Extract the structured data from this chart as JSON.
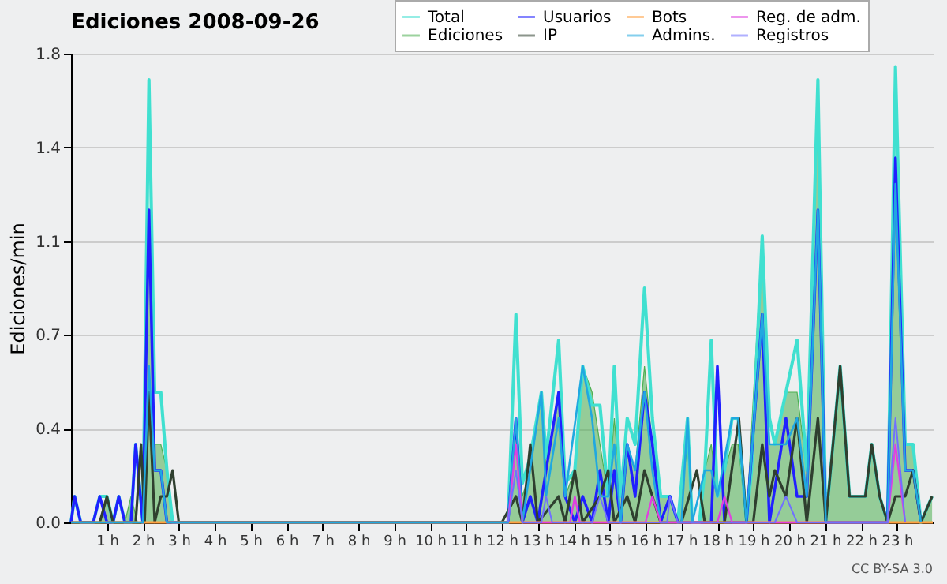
{
  "chart_data": {
    "type": "line",
    "title": "Ediciones  2008-09-26",
    "ylabel": "Ediciones/min",
    "annotations": [
      "CC BY-SA 3.0"
    ],
    "xlim": [
      0,
      24
    ],
    "xticks": [
      {
        "value": 1,
        "label": "1 h"
      },
      {
        "value": 2,
        "label": "2 h"
      },
      {
        "value": 3,
        "label": "3 h"
      },
      {
        "value": 4,
        "label": "4 h"
      },
      {
        "value": 5,
        "label": "5 h"
      },
      {
        "value": 6,
        "label": "6 h"
      },
      {
        "value": 7,
        "label": "7 h"
      },
      {
        "value": 8,
        "label": "8 h"
      },
      {
        "value": 9,
        "label": "9 h"
      },
      {
        "value": 10,
        "label": "10 h"
      },
      {
        "value": 11,
        "label": "11 h"
      },
      {
        "value": 12,
        "label": "12 h"
      },
      {
        "value": 13,
        "label": "13 h"
      },
      {
        "value": 14,
        "label": "14 h"
      },
      {
        "value": 15,
        "label": "15 h"
      },
      {
        "value": 16,
        "label": "16 h"
      },
      {
        "value": 17,
        "label": "17 h"
      },
      {
        "value": 18,
        "label": "18 h"
      },
      {
        "value": 19,
        "label": "19 h"
      },
      {
        "value": 20,
        "label": "20 h"
      },
      {
        "value": 21,
        "label": "21 h"
      },
      {
        "value": 22,
        "label": "22 h"
      },
      {
        "value": 23,
        "label": "23 h"
      }
    ],
    "ylim": [
      0,
      1.8
    ],
    "yticks": [
      {
        "value": 0,
        "label": "0.0"
      },
      {
        "value": 0.36,
        "label": "0.4"
      },
      {
        "value": 0.72,
        "label": "0.7"
      },
      {
        "value": 1.08,
        "label": "1.1"
      },
      {
        "value": 1.44,
        "label": "1.4"
      },
      {
        "value": 1.8,
        "label": "1.8"
      }
    ],
    "grid": "y",
    "legend": "top right",
    "series": [
      {
        "name": "Total",
        "color": "#40e0d0",
        "x": [
          0,
          0.1,
          0.27,
          0.62,
          0.8,
          1.0,
          1.17,
          1.33,
          1.5,
          1.67,
          1.8,
          2.0,
          2.17,
          2.33,
          2.5,
          2.67,
          2.83,
          12.17,
          12.39,
          12.57,
          12.79,
          13.1,
          13.23,
          13.58,
          13.76,
          14.03,
          14.25,
          14.51,
          14.73,
          14.96,
          15.13,
          15.31,
          15.49,
          15.71,
          15.97,
          16.19,
          16.42,
          16.68,
          16.9,
          17.17,
          17.3,
          17.5,
          17.65,
          17.83,
          18.0,
          18.2,
          18.41,
          18.58,
          18.81,
          18.95,
          19.25,
          19.45,
          19.6,
          19.91,
          20.22,
          20.49,
          20.8,
          21.02,
          21.42,
          21.68,
          22.12,
          22.3,
          22.52,
          22.74,
          22.96,
          23.23,
          23.45,
          23.67,
          23.98
        ],
        "values": [
          0,
          0.1,
          0,
          0,
          0.1,
          0.1,
          0,
          0.1,
          0,
          0,
          0.3,
          0,
          1.7,
          0.5,
          0.5,
          0.2,
          0,
          0,
          0.8,
          0.15,
          0.25,
          0.5,
          0.25,
          0.7,
          0.15,
          0.2,
          0.6,
          0.45,
          0.45,
          0.1,
          0.6,
          0.1,
          0.4,
          0.3,
          0.9,
          0.4,
          0.1,
          0.1,
          0,
          0.4,
          0,
          0,
          0.2,
          0.7,
          0.1,
          0.2,
          0.4,
          0.4,
          0,
          0.2,
          1.1,
          0.4,
          0.3,
          0.5,
          0.7,
          0.2,
          1.7,
          0,
          0.6,
          0.1,
          0.1,
          0.3,
          0.1,
          0,
          1.75,
          0.3,
          0.3,
          0,
          0.1
        ]
      },
      {
        "name": "Ediciones",
        "type": "area",
        "color": "#4caf50",
        "x": [
          0,
          0.8,
          1.0,
          1.17,
          1.5,
          1.67,
          1.85,
          2.0,
          2.17,
          2.33,
          2.5,
          2.67,
          2.83,
          12.17,
          12.39,
          12.57,
          12.79,
          13.1,
          13.23,
          13.58,
          13.76,
          14.03,
          14.25,
          14.51,
          14.73,
          14.96,
          15.13,
          15.31,
          15.49,
          15.71,
          15.97,
          16.19,
          16.42,
          16.68,
          16.9,
          17.17,
          17.3,
          17.5,
          17.65,
          17.83,
          18.0,
          18.41,
          18.58,
          18.81,
          19.25,
          19.45,
          19.6,
          19.91,
          20.22,
          20.49,
          20.8,
          21.02,
          21.42,
          21.68,
          22.12,
          22.3,
          22.52,
          22.74,
          22.96,
          23.23,
          23.45,
          23.67,
          23.98
        ],
        "values": [
          0,
          0,
          0.1,
          0,
          0,
          0.1,
          0,
          0,
          1.1,
          0.3,
          0.3,
          0.2,
          0,
          0,
          0.4,
          0.1,
          0.2,
          0.5,
          0.2,
          0.5,
          0.1,
          0.2,
          0.6,
          0.5,
          0.3,
          0.1,
          0.4,
          0.1,
          0.3,
          0.2,
          0.6,
          0.3,
          0.1,
          0.1,
          0,
          0.3,
          0,
          0,
          0.2,
          0.3,
          0.1,
          0.3,
          0.3,
          0,
          1.1,
          0.3,
          0.3,
          0.5,
          0.5,
          0.2,
          1.6,
          0,
          0.6,
          0.1,
          0.1,
          0.3,
          0.1,
          0,
          1.3,
          0.3,
          0.3,
          0,
          0.1
        ]
      },
      {
        "name": "Usuarios",
        "color": "#2020ff",
        "x": [
          0,
          0.1,
          0.27,
          0.62,
          0.8,
          1.0,
          1.17,
          1.33,
          1.5,
          1.67,
          1.8,
          2.0,
          2.17,
          2.33,
          2.5,
          2.67,
          12.17,
          12.39,
          12.57,
          12.79,
          13.0,
          13.23,
          13.58,
          13.76,
          14.03,
          14.25,
          14.51,
          14.73,
          14.96,
          15.13,
          15.31,
          15.49,
          15.71,
          15.97,
          16.19,
          16.42,
          16.68,
          16.9,
          17.83,
          18.0,
          18.2,
          18.81,
          19.25,
          19.45,
          19.91,
          20.22,
          20.49,
          20.8,
          21.02,
          22.74,
          22.96,
          23.23,
          23.45,
          23.67
        ],
        "values": [
          0,
          0.1,
          0,
          0,
          0.1,
          0,
          0,
          0.1,
          0,
          0,
          0.3,
          0,
          1.2,
          0.2,
          0.2,
          0,
          0,
          0.4,
          0,
          0.1,
          0,
          0.2,
          0.5,
          0.1,
          0,
          0.1,
          0,
          0.2,
          0,
          0.2,
          0,
          0.3,
          0.1,
          0.5,
          0.3,
          0,
          0.1,
          0,
          0,
          0.6,
          0,
          0,
          0.8,
          0,
          0.4,
          0.1,
          0.1,
          1.2,
          0,
          0,
          1.4,
          0.2,
          0.2,
          0
        ]
      },
      {
        "name": "IP",
        "color": "#2f3f2f",
        "x": [
          0,
          0.8,
          1.0,
          1.17,
          1.8,
          1.95,
          2.05,
          2.17,
          2.33,
          2.5,
          2.67,
          2.83,
          3.0,
          12.0,
          12.39,
          12.57,
          12.79,
          13.0,
          13.58,
          13.76,
          14.03,
          14.25,
          14.73,
          14.96,
          15.13,
          15.49,
          15.71,
          15.97,
          16.19,
          16.42,
          17.0,
          17.43,
          17.65,
          18.2,
          18.6,
          18.81,
          19.0,
          19.25,
          19.45,
          19.6,
          19.91,
          20.22,
          20.49,
          20.8,
          21.02,
          21.42,
          21.68,
          22.12,
          22.3,
          22.52,
          22.74,
          22.96,
          23.23,
          23.45,
          23.67,
          23.98
        ],
        "values": [
          0,
          0,
          0.1,
          0,
          0,
          0.3,
          0,
          0.5,
          0,
          0.1,
          0.1,
          0.2,
          0,
          0,
          0.1,
          0,
          0.3,
          0,
          0.1,
          0,
          0.2,
          0,
          0.1,
          0.2,
          0,
          0.1,
          0,
          0.2,
          0.1,
          0,
          0,
          0.2,
          0,
          0,
          0.4,
          0,
          0,
          0.3,
          0.1,
          0.2,
          0.1,
          0.4,
          0,
          0.4,
          0,
          0.6,
          0.1,
          0.1,
          0.3,
          0.1,
          0,
          0.1,
          0.1,
          0.2,
          0,
          0.1
        ]
      },
      {
        "name": "Bots",
        "color": "#ffa040",
        "x": [
          0,
          24
        ],
        "values": [
          0,
          0
        ]
      },
      {
        "name": "Admins.",
        "color": "#20a8e0",
        "x": [
          0,
          2.0,
          2.17,
          2.33,
          2.5,
          2.67,
          12.17,
          12.39,
          12.57,
          13.1,
          13.23,
          13.58,
          13.76,
          14.25,
          14.51,
          14.73,
          14.96,
          15.13,
          15.31,
          15.49,
          15.71,
          15.97,
          16.19,
          16.42,
          17.0,
          17.17,
          17.3,
          17.65,
          17.83,
          18.0,
          18.41,
          18.58,
          18.81,
          19.25,
          19.45,
          19.91,
          20.22,
          20.49,
          20.8,
          21.02,
          22.74,
          22.96,
          23.23,
          23.45,
          23.67
        ],
        "values": [
          0,
          0,
          0.6,
          0.2,
          0.2,
          0,
          0,
          0.4,
          0,
          0.5,
          0.1,
          0.4,
          0.1,
          0.6,
          0.4,
          0.1,
          0.1,
          0.3,
          0,
          0.3,
          0.2,
          0.5,
          0.2,
          0,
          0,
          0.4,
          0,
          0.2,
          0.2,
          0.1,
          0.4,
          0.4,
          0,
          0.8,
          0.3,
          0.3,
          0.4,
          0.1,
          1.2,
          0,
          0,
          1.3,
          0.2,
          0.2,
          0
        ]
      },
      {
        "name": "Reg. de adm.",
        "color": "#e040e0",
        "x": [
          12.17,
          12.39,
          12.57,
          13.9,
          14.03,
          14.17,
          16.0,
          16.19,
          16.42,
          18.0,
          18.2,
          18.41,
          22.74,
          22.96,
          23.23
        ],
        "values": [
          0,
          0.3,
          0,
          0,
          0.1,
          0,
          0,
          0.1,
          0,
          0,
          0.1,
          0,
          0,
          0.3,
          0
        ]
      },
      {
        "name": "Registros",
        "color": "#7070ff",
        "x": [
          12.17,
          12.39,
          12.57,
          13.1,
          13.23,
          13.4,
          14.51,
          14.73,
          14.96,
          16.6,
          16.68,
          16.9,
          19.6,
          19.91,
          20.22,
          22.74,
          22.96,
          23.23
        ],
        "values": [
          0,
          0.2,
          0,
          0,
          0.1,
          0,
          0,
          0.1,
          0,
          0,
          0.1,
          0,
          0,
          0.1,
          0,
          0,
          0.4,
          0
        ]
      }
    ]
  }
}
